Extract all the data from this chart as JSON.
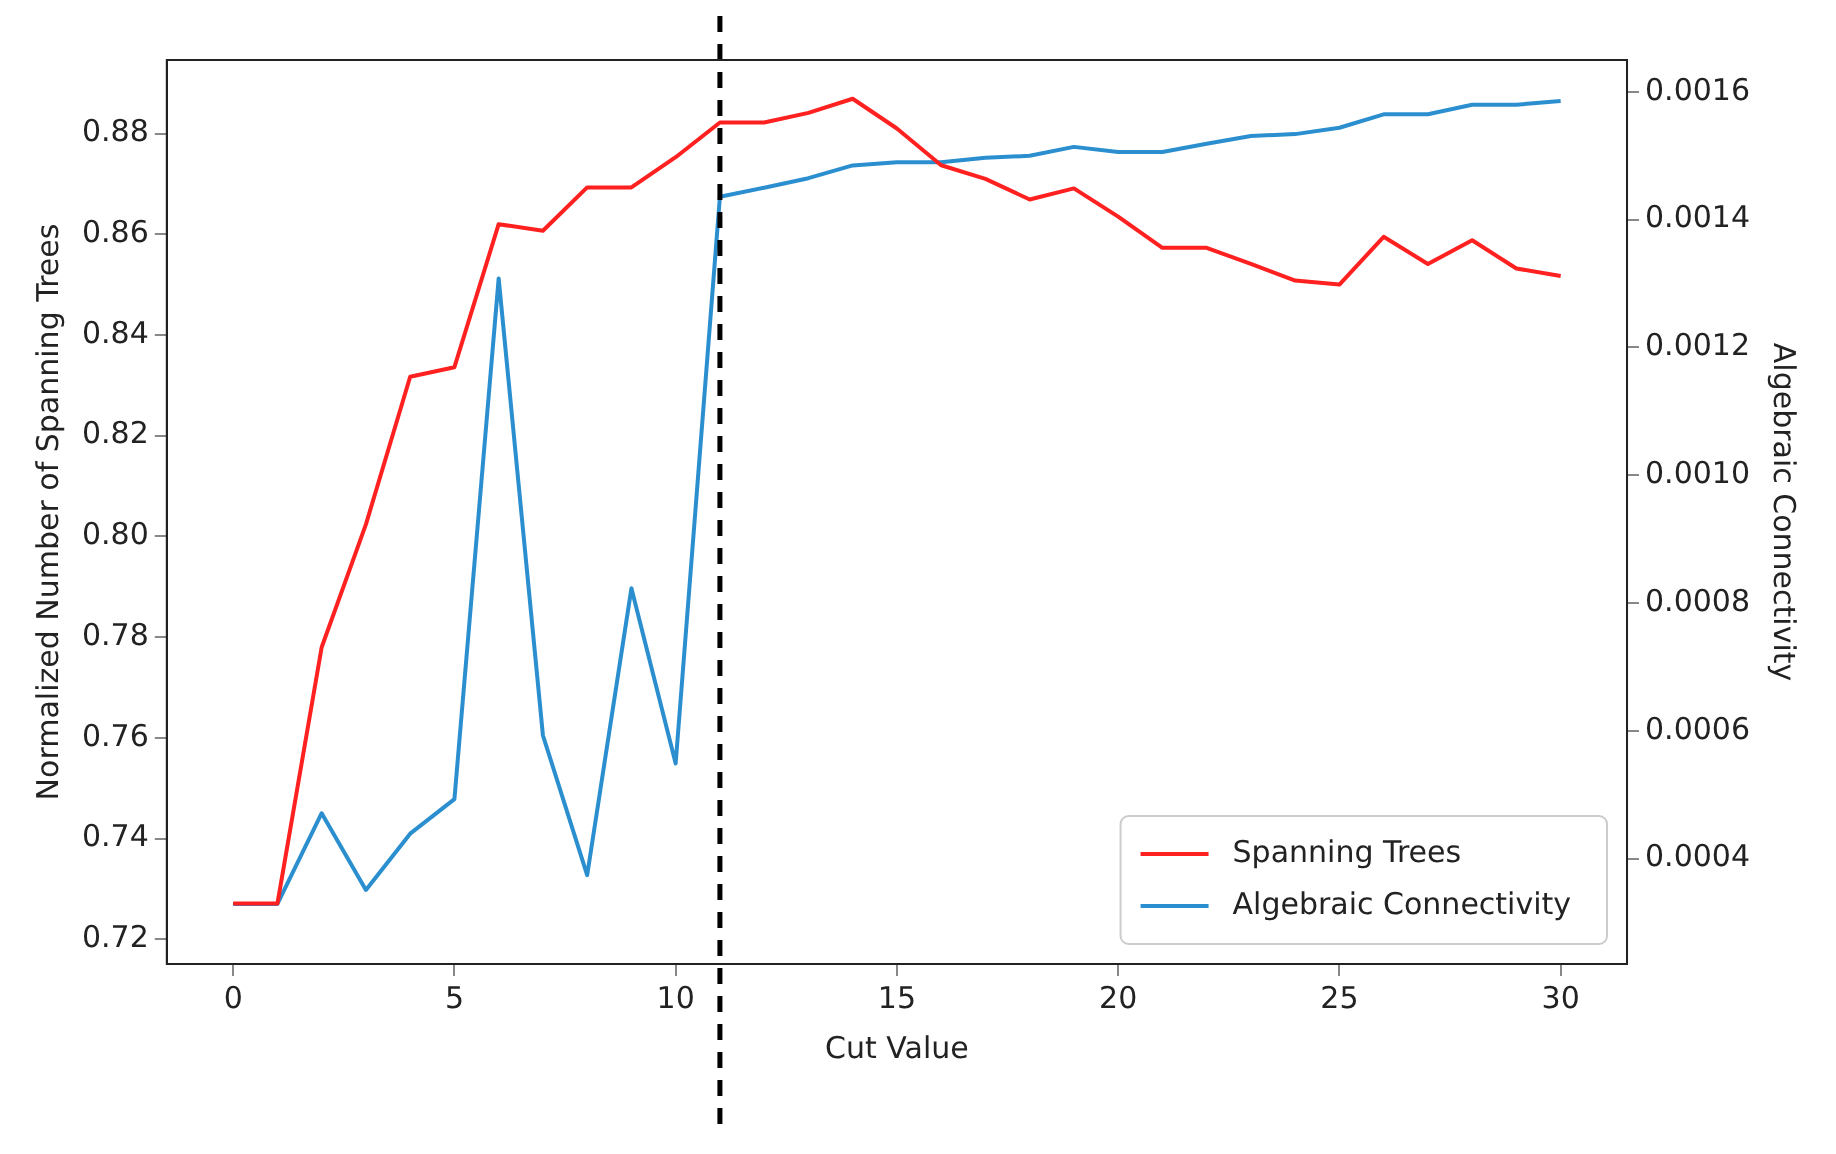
{
  "chart_data": {
    "type": "line",
    "xlabel": "Cut Value",
    "ylabel": "Normalized Number of Spanning Trees",
    "y2label": "Algebraic Connectivity",
    "x": [
      0,
      1,
      2,
      3,
      4,
      5,
      6,
      7,
      8,
      9,
      10,
      11,
      12,
      13,
      14,
      15,
      16,
      17,
      18,
      19,
      20,
      21,
      22,
      23,
      24,
      25,
      26,
      27,
      28,
      29,
      30
    ],
    "series": [
      {
        "name": "Spanning Trees",
        "color": "#ff2020",
        "values": [
          0.7271,
          0.7271,
          0.778,
          0.8024,
          0.8317,
          0.8336,
          0.862,
          0.8607,
          0.8693,
          0.8693,
          0.8753,
          0.8822,
          0.8822,
          0.8841,
          0.8869,
          0.881,
          0.8737,
          0.871,
          0.8669,
          0.8691,
          0.8635,
          0.8573,
          0.8573,
          0.8541,
          0.8508,
          0.85,
          0.8595,
          0.8541,
          0.8588,
          0.8532,
          0.8517
        ]
      },
      {
        "name": "Algebraic Connectivity",
        "color": "#2b8fcf",
        "axis": "y2",
        "values": [
          0.000329,
          0.000329,
          0.000471,
          0.000351,
          0.000439,
          0.000493,
          0.001308,
          0.000593,
          0.000374,
          0.000823,
          0.000549,
          0.001436,
          0.00145,
          0.001465,
          0.001485,
          0.00149,
          0.00149,
          0.001497,
          0.0015,
          0.001514,
          0.001506,
          0.001506,
          0.001519,
          0.001531,
          0.001534,
          0.001544,
          0.001565,
          0.001565,
          0.00158,
          0.00158,
          0.001586
        ]
      }
    ],
    "xlim": [
      -1.5,
      31.5
    ],
    "xticks": [
      0,
      5,
      10,
      15,
      20,
      25,
      30
    ],
    "ylim": [
      0.7151,
      0.8946
    ],
    "yticks": [
      0.72,
      0.74,
      0.76,
      0.78,
      {
        "value": 0.8,
        "label": "0.80"
      },
      0.82,
      0.84,
      0.86,
      0.88
    ],
    "y2lim": [
      0.000235,
      0.00165
    ],
    "y2ticks": [
      0.0004,
      0.0006,
      0.0008,
      {
        "value": 0.001,
        "label": "0.0010"
      },
      0.0012,
      0.0014,
      0.0016
    ],
    "ref_lines": [
      {
        "axis": "x",
        "value": 11,
        "color": "#000000",
        "line_style": "dashed"
      }
    ],
    "legend": "bottom right",
    "grid": false,
    "marker": "none",
    "line_style": "solid"
  }
}
